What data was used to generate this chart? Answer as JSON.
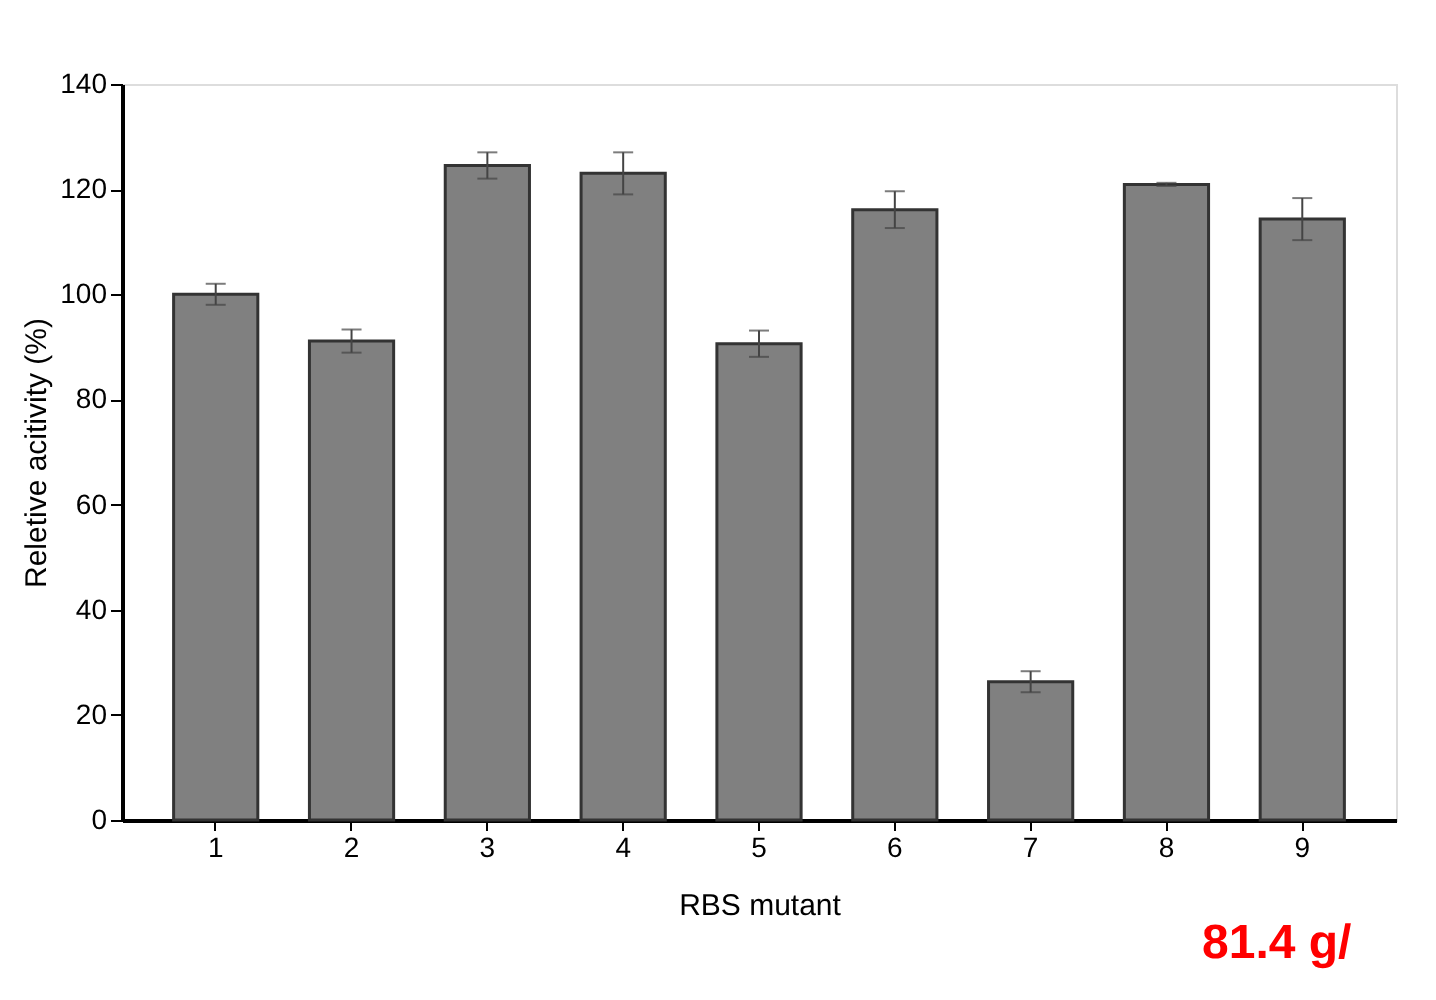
{
  "chart_data": {
    "type": "bar",
    "xlabel": "RBS mutant",
    "ylabel": "Reletive acitivity (%)",
    "categories": [
      "1",
      "2",
      "3",
      "4",
      "5",
      "6",
      "7",
      "8",
      "9"
    ],
    "values": [
      100,
      91.1,
      124.5,
      123,
      90.6,
      116.1,
      26.3,
      120.9,
      114.3
    ],
    "errors": [
      2,
      2.2,
      2.5,
      4,
      2.5,
      3.5,
      2,
      0.3,
      4
    ],
    "color": "#808080",
    "ylim": [
      0,
      140
    ],
    "yticks": [
      0,
      20,
      40,
      60,
      80,
      100,
      120,
      140
    ],
    "grid": false,
    "annotations": [
      {
        "text": "81.4 g/"
      }
    ]
  }
}
